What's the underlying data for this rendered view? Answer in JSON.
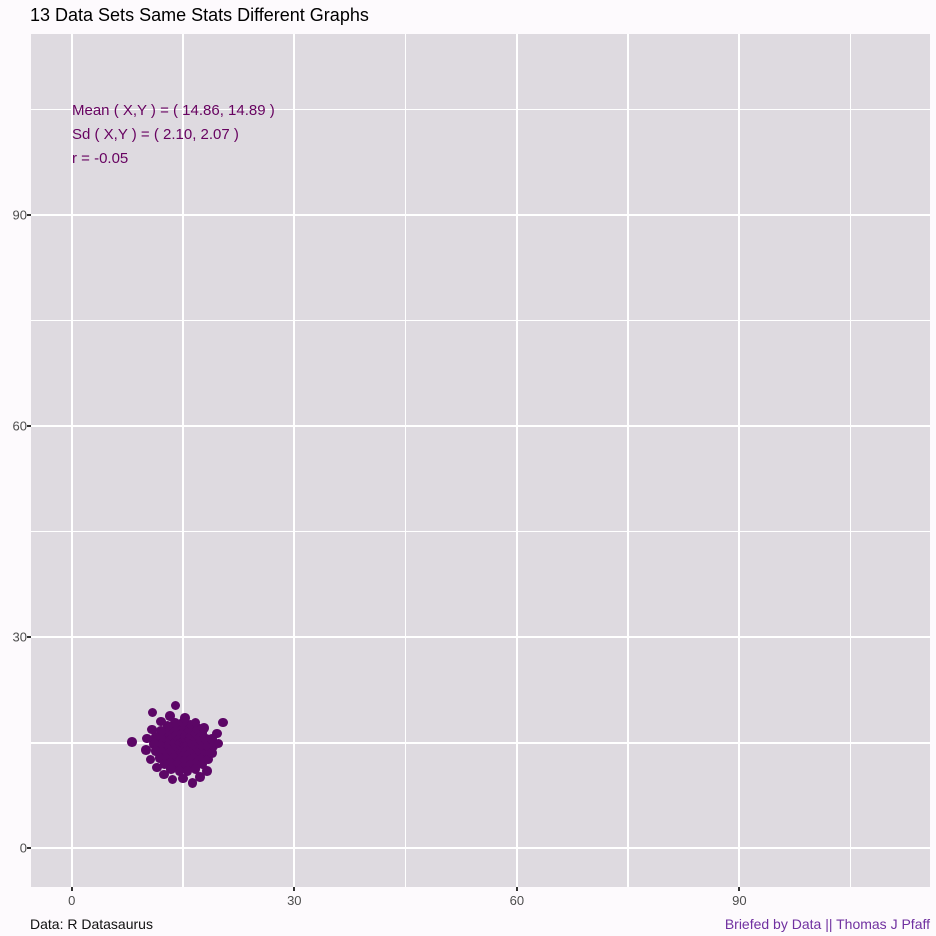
{
  "title": "13 Data Sets Same Stats Different Graphs",
  "annotation": {
    "line1": "Mean ( X,Y ) = ( 14.86, 14.89 )",
    "line2": "Sd ( X,Y ) = ( 2.10, 2.07 )",
    "line3": "r = -0.05"
  },
  "captions": {
    "left": "Data: R Datasaurus",
    "right": "Briefed by Data || Thomas J Pfaff"
  },
  "colors": {
    "point": "#5C0666",
    "annotation_text": "#670260",
    "caption_right": "#7030A0",
    "panel_background": "#DEDAE0",
    "outer_background": "#FDFAFD",
    "gridline": "#FFFFFF",
    "axis_text": "#4D4D4D",
    "tick_mark": "#333333"
  },
  "chart_data": {
    "type": "scatter",
    "title": "13 Data Sets Same Stats Different Graphs",
    "xlabel": "",
    "ylabel": "",
    "x_domain": [
      -5.5,
      115.7
    ],
    "y_domain": [
      -5.5,
      115.7
    ],
    "x_ticks_major": [
      0,
      30,
      60,
      90
    ],
    "y_ticks_major": [
      0,
      30,
      60,
      90
    ],
    "x_ticks_minor": [
      15,
      45,
      75,
      105
    ],
    "y_ticks_minor": [
      15,
      45,
      75,
      105
    ],
    "grid": "on",
    "legend": "none",
    "stats": {
      "mean_x": 14.86,
      "mean_y": 14.89,
      "sd_x": 2.1,
      "sd_y": 2.07,
      "r": -0.05
    },
    "points": [
      [
        15.0,
        14.8
      ],
      [
        14.6,
        15.2
      ],
      [
        15.3,
        15.1
      ],
      [
        14.9,
        14.4
      ],
      [
        14.4,
        14.7
      ],
      [
        15.2,
        14.2
      ],
      [
        15.6,
        15.0
      ],
      [
        14.8,
        15.7
      ],
      [
        14.2,
        15.3
      ],
      [
        14.1,
        14.4
      ],
      [
        14.8,
        13.9
      ],
      [
        15.5,
        14.6
      ],
      [
        15.9,
        14.9
      ],
      [
        15.1,
        15.8
      ],
      [
        14.5,
        16.0
      ],
      [
        13.8,
        15.4
      ],
      [
        13.9,
        14.8
      ],
      [
        14.1,
        14.0
      ],
      [
        14.6,
        13.6
      ],
      [
        15.4,
        13.7
      ],
      [
        16.0,
        14.2
      ],
      [
        16.2,
        14.9
      ],
      [
        15.9,
        15.5
      ],
      [
        15.5,
        16.0
      ],
      [
        14.9,
        16.2
      ],
      [
        14.1,
        16.1
      ],
      [
        13.5,
        15.7
      ],
      [
        13.3,
        15.0
      ],
      [
        13.5,
        14.3
      ],
      [
        13.8,
        13.7
      ],
      [
        14.4,
        13.2
      ],
      [
        15.1,
        13.1
      ],
      [
        15.8,
        13.3
      ],
      [
        16.4,
        13.8
      ],
      [
        16.7,
        14.5
      ],
      [
        16.8,
        15.2
      ],
      [
        16.4,
        15.9
      ],
      [
        15.8,
        16.4
      ],
      [
        15.0,
        16.7
      ],
      [
        14.2,
        16.7
      ],
      [
        13.5,
        16.4
      ],
      [
        12.9,
        15.8
      ],
      [
        12.7,
        15.0
      ],
      [
        12.8,
        14.2
      ],
      [
        13.2,
        13.5
      ],
      [
        13.8,
        12.9
      ],
      [
        14.5,
        12.5
      ],
      [
        15.3,
        12.4
      ],
      [
        16.1,
        12.6
      ],
      [
        16.8,
        13.1
      ],
      [
        17.3,
        13.8
      ],
      [
        17.5,
        14.6
      ],
      [
        17.4,
        15.4
      ],
      [
        17.0,
        16.1
      ],
      [
        16.4,
        16.7
      ],
      [
        15.7,
        17.1
      ],
      [
        14.8,
        17.3
      ],
      [
        13.9,
        17.2
      ],
      [
        13.1,
        16.9
      ],
      [
        12.4,
        16.3
      ],
      [
        12.0,
        15.5
      ],
      [
        11.9,
        14.6
      ],
      [
        12.1,
        13.7
      ],
      [
        12.6,
        12.9
      ],
      [
        13.3,
        12.2
      ],
      [
        14.2,
        11.8
      ],
      [
        15.1,
        11.6
      ],
      [
        16.0,
        11.8
      ],
      [
        16.9,
        12.2
      ],
      [
        17.7,
        12.8
      ],
      [
        18.2,
        13.6
      ],
      [
        18.3,
        14.5
      ],
      [
        18.1,
        15.5
      ],
      [
        17.6,
        16.4
      ],
      [
        16.9,
        17.1
      ],
      [
        16.0,
        17.6
      ],
      [
        15.0,
        17.9
      ],
      [
        13.9,
        17.8
      ],
      [
        12.9,
        17.4
      ],
      [
        12.0,
        16.7
      ],
      [
        11.3,
        15.8
      ],
      [
        11.1,
        14.8
      ],
      [
        11.3,
        13.8
      ],
      [
        11.8,
        12.8
      ],
      [
        12.5,
        12.0
      ],
      [
        13.4,
        11.3
      ],
      [
        14.5,
        11.0
      ],
      [
        15.6,
        11.0
      ],
      [
        16.7,
        11.3
      ],
      [
        17.6,
        11.9
      ],
      [
        18.4,
        12.6
      ],
      [
        18.9,
        13.5
      ],
      [
        19.1,
        14.5
      ],
      [
        18.9,
        15.5
      ],
      [
        16.3,
        9.3
      ],
      [
        15.0,
        9.9
      ],
      [
        13.6,
        9.8
      ],
      [
        12.4,
        10.5
      ],
      [
        17.3,
        10.1
      ],
      [
        18.2,
        11.0
      ],
      [
        11.5,
        11.5
      ],
      [
        10.6,
        12.6
      ],
      [
        10.0,
        14.0
      ],
      [
        10.1,
        15.6
      ],
      [
        10.8,
        16.9
      ],
      [
        12.0,
        18.0
      ],
      [
        13.2,
        18.8
      ],
      [
        15.3,
        18.5
      ],
      [
        16.7,
        17.9
      ],
      [
        17.8,
        17.1
      ],
      [
        19.8,
        14.9
      ],
      [
        8.1,
        15.1
      ],
      [
        10.9,
        19.3
      ],
      [
        14.0,
        20.3
      ],
      [
        20.4,
        17.9
      ],
      [
        19.6,
        16.3
      ]
    ]
  }
}
